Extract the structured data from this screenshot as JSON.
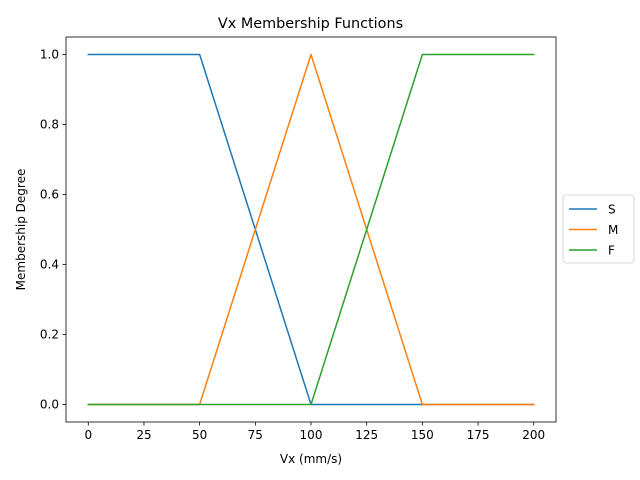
{
  "chart_data": {
    "type": "line",
    "title": "Vx Membership Functions",
    "xlabel": "Vx (mm/s)",
    "ylabel": "Membership Degree",
    "xlim": [
      -10,
      210
    ],
    "ylim": [
      -0.05,
      1.05
    ],
    "xticks": [
      0,
      25,
      50,
      75,
      100,
      125,
      150,
      175,
      200
    ],
    "yticks": [
      0.0,
      0.2,
      0.4,
      0.6,
      0.8,
      1.0
    ],
    "ytick_labels": [
      "0.0",
      "0.2",
      "0.4",
      "0.6",
      "0.8",
      "1.0"
    ],
    "grid": false,
    "legend_position": "center right, outside plot",
    "series": [
      {
        "name": "S",
        "color": "#1f77b4",
        "x": [
          0,
          50,
          100,
          200
        ],
        "y": [
          1,
          1,
          0,
          0
        ]
      },
      {
        "name": "M",
        "color": "#ff7f0e",
        "x": [
          0,
          50,
          100,
          150,
          200
        ],
        "y": [
          0,
          0,
          1,
          0,
          0
        ]
      },
      {
        "name": "F",
        "color": "#2ca02c",
        "x": [
          0,
          100,
          150,
          200
        ],
        "y": [
          0,
          0,
          1,
          1
        ]
      }
    ]
  }
}
